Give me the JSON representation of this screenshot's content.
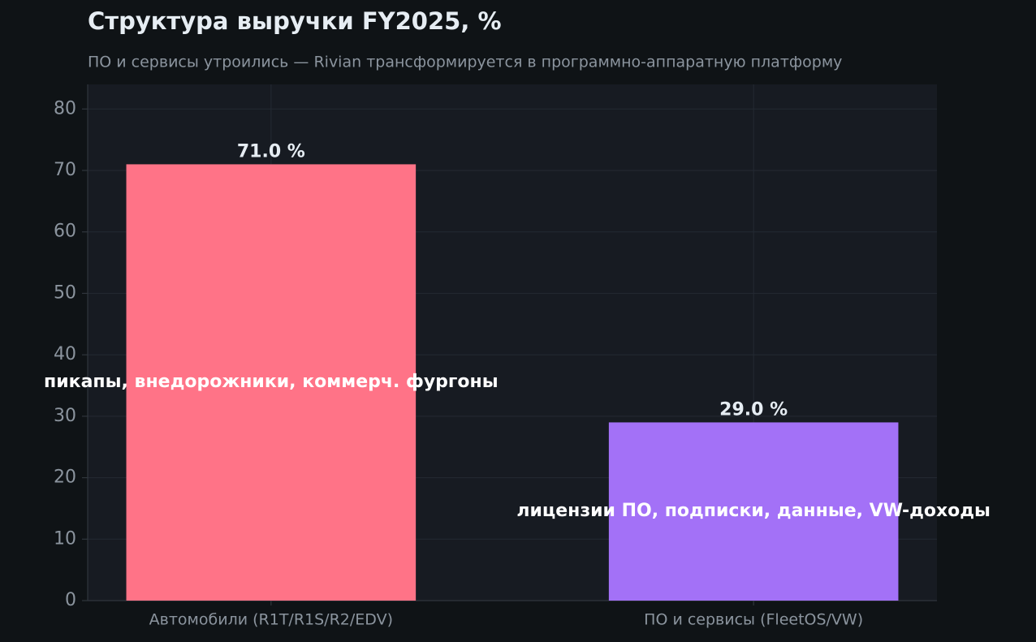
{
  "chart_data": {
    "type": "bar",
    "title": "Структура выручки FY2025, %",
    "subtitle": "ПО и сервисы утроились — Rivian трансформируется в программно-аппаратную платформу",
    "categories": [
      "Автомобили (R1T/R1S/R2/EDV)",
      "ПО и сервисы (FleetOS/VW)"
    ],
    "values": [
      71.0,
      29.0
    ],
    "value_labels": [
      "71.0 %",
      "29.0 %"
    ],
    "annotations": [
      "пикапы, внедорожники, коммерч. фургоны",
      "лицензии ПО, подписки, данные, VW-доходы"
    ],
    "colors": [
      "#ff7387",
      "#a371f7"
    ],
    "ylim": [
      0,
      84
    ],
    "yticks": [
      0,
      10,
      20,
      30,
      40,
      50,
      60,
      70,
      80
    ],
    "grid": true
  }
}
